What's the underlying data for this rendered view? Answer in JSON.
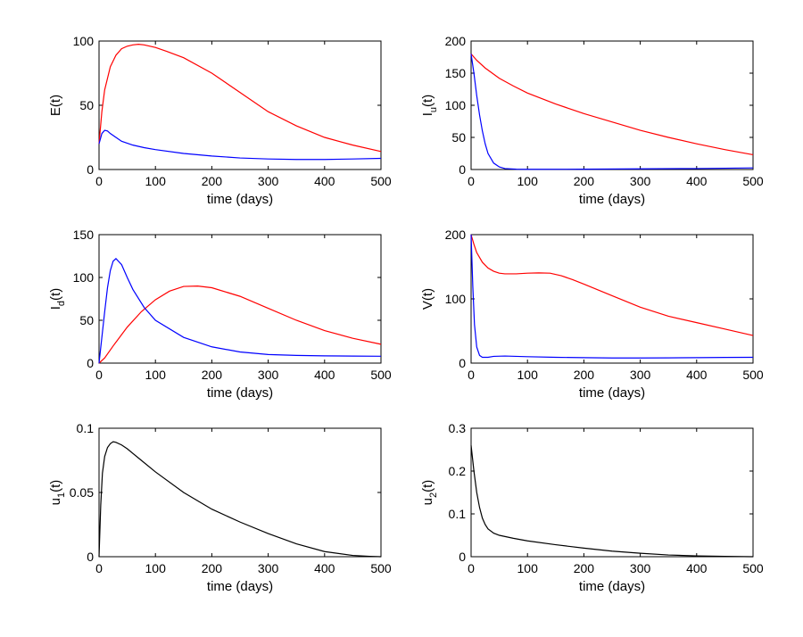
{
  "colors": {
    "red": "#ff0000",
    "blue": "#0000ff",
    "black": "#000000"
  },
  "chart_data": [
    {
      "type": "line",
      "xlabel": "time (days)",
      "ylabel": "E(t)",
      "xlim": [
        0,
        500
      ],
      "ylim": [
        0,
        100
      ],
      "xticks": [
        0,
        100,
        200,
        300,
        400,
        500
      ],
      "yticks": [
        0,
        50,
        100
      ],
      "series": [
        {
          "color": "red",
          "x": [
            0,
            5,
            10,
            20,
            30,
            40,
            50,
            60,
            70,
            80,
            100,
            120,
            150,
            200,
            250,
            300,
            350,
            400,
            450,
            500
          ],
          "y": [
            20,
            45,
            62,
            80,
            89,
            94,
            96,
            97,
            97.5,
            97,
            95,
            92,
            87,
            75,
            60,
            45,
            34,
            25,
            19,
            14
          ]
        },
        {
          "color": "blue",
          "x": [
            0,
            5,
            10,
            15,
            20,
            30,
            40,
            60,
            80,
            100,
            150,
            200,
            250,
            300,
            350,
            400,
            450,
            500
          ],
          "y": [
            20,
            28,
            30.5,
            30,
            28,
            25,
            22,
            19,
            17,
            15.5,
            12.5,
            10.5,
            9,
            8.2,
            7.8,
            7.8,
            8.2,
            8.7
          ]
        }
      ]
    },
    {
      "type": "line",
      "xlabel": "time (days)",
      "ylabel": "I",
      "ylabel_sub": "u",
      "ylabel_suffix": "(t)",
      "xlim": [
        0,
        500
      ],
      "ylim": [
        0,
        200
      ],
      "xticks": [
        0,
        100,
        200,
        300,
        400,
        500
      ],
      "yticks": [
        0,
        50,
        100,
        150,
        200
      ],
      "series": [
        {
          "color": "red",
          "x": [
            0,
            10,
            25,
            50,
            75,
            100,
            150,
            200,
            250,
            300,
            350,
            400,
            450,
            500
          ],
          "y": [
            180,
            170,
            158,
            142,
            130,
            119,
            102,
            87,
            74,
            61,
            50,
            40,
            31,
            23
          ]
        },
        {
          "color": "blue",
          "x": [
            0,
            5,
            10,
            15,
            20,
            25,
            30,
            40,
            50,
            60,
            80,
            100,
            200,
            300,
            400,
            500
          ],
          "y": [
            180,
            150,
            115,
            85,
            60,
            40,
            25,
            10,
            4,
            1.5,
            0.5,
            0.3,
            0.5,
            1,
            1.5,
            2.5
          ]
        }
      ]
    },
    {
      "type": "line",
      "xlabel": "time (days)",
      "ylabel": "I",
      "ylabel_sub": "d",
      "ylabel_suffix": "(t)",
      "xlim": [
        0,
        500
      ],
      "ylim": [
        0,
        150
      ],
      "xticks": [
        0,
        100,
        200,
        300,
        400,
        500
      ],
      "yticks": [
        0,
        50,
        100,
        150
      ],
      "series": [
        {
          "color": "red",
          "x": [
            0,
            10,
            25,
            50,
            75,
            100,
            125,
            150,
            175,
            200,
            250,
            300,
            350,
            400,
            450,
            500
          ],
          "y": [
            0,
            6,
            20,
            42,
            60,
            74,
            84,
            89.5,
            90,
            88,
            78,
            64,
            50,
            38,
            29,
            22
          ]
        },
        {
          "color": "blue",
          "x": [
            0,
            5,
            10,
            15,
            20,
            25,
            30,
            40,
            50,
            60,
            80,
            100,
            150,
            200,
            250,
            300,
            350,
            400,
            450,
            500
          ],
          "y": [
            0,
            30,
            60,
            88,
            108,
            119,
            122,
            115,
            100,
            86,
            65,
            50,
            30,
            19,
            13,
            10,
            9,
            8.5,
            8.2,
            8
          ]
        }
      ]
    },
    {
      "type": "line",
      "xlabel": "time (days)",
      "ylabel": "V(t)",
      "xlim": [
        0,
        500
      ],
      "ylim": [
        0,
        200
      ],
      "xticks": [
        0,
        100,
        200,
        300,
        400,
        500
      ],
      "yticks": [
        0,
        100,
        200
      ],
      "series": [
        {
          "color": "red",
          "x": [
            0,
            5,
            10,
            20,
            30,
            40,
            50,
            60,
            80,
            100,
            120,
            140,
            160,
            180,
            200,
            250,
            300,
            350,
            400,
            450,
            500
          ],
          "y": [
            200,
            185,
            172,
            157,
            148,
            143,
            140,
            139,
            139,
            140,
            140.5,
            140,
            136,
            130,
            123,
            105,
            87,
            73,
            63,
            53,
            43
          ]
        },
        {
          "color": "blue",
          "x": [
            0,
            3,
            6,
            10,
            15,
            20,
            30,
            40,
            60,
            80,
            100,
            150,
            200,
            250,
            300,
            350,
            400,
            450,
            500
          ],
          "y": [
            200,
            120,
            60,
            25,
            12,
            9,
            9,
            10.5,
            11,
            10.5,
            10,
            9,
            8.5,
            8,
            8,
            8.2,
            8.5,
            8.8,
            9
          ]
        }
      ]
    },
    {
      "type": "line",
      "xlabel": "time (days)",
      "ylabel": "u",
      "ylabel_sub": "1",
      "ylabel_suffix": "(t)",
      "xlim": [
        0,
        500
      ],
      "ylim": [
        0,
        0.1
      ],
      "xticks": [
        0,
        100,
        200,
        300,
        400,
        500
      ],
      "yticks": [
        0,
        0.05,
        0.1
      ],
      "ytick_labels": [
        "0",
        "0.05",
        "0.1"
      ],
      "series": [
        {
          "color": "black",
          "x": [
            0,
            3,
            6,
            10,
            15,
            20,
            25,
            30,
            40,
            50,
            75,
            100,
            150,
            200,
            250,
            300,
            350,
            400,
            450,
            480,
            500
          ],
          "y": [
            0,
            0.04,
            0.065,
            0.078,
            0.085,
            0.088,
            0.0895,
            0.089,
            0.087,
            0.084,
            0.075,
            0.066,
            0.05,
            0.037,
            0.027,
            0.018,
            0.01,
            0.004,
            0.001,
            0.0003,
            0
          ]
        }
      ]
    },
    {
      "type": "line",
      "xlabel": "time (days)",
      "ylabel": "u",
      "ylabel_sub": "2",
      "ylabel_suffix": "(t)",
      "xlim": [
        0,
        500
      ],
      "ylim": [
        0,
        0.3
      ],
      "xticks": [
        0,
        100,
        200,
        300,
        400,
        500
      ],
      "yticks": [
        0,
        0.1,
        0.2,
        0.3
      ],
      "ytick_labels": [
        "0",
        "0.1",
        "0.2",
        "0.3"
      ],
      "series": [
        {
          "color": "black",
          "x": [
            0,
            5,
            10,
            15,
            20,
            25,
            30,
            40,
            50,
            75,
            100,
            150,
            200,
            250,
            300,
            350,
            400,
            450,
            500
          ],
          "y": [
            0.26,
            0.2,
            0.15,
            0.115,
            0.09,
            0.075,
            0.065,
            0.055,
            0.05,
            0.043,
            0.037,
            0.028,
            0.02,
            0.013,
            0.008,
            0.004,
            0.002,
            0.0008,
            0
          ]
        }
      ]
    }
  ]
}
